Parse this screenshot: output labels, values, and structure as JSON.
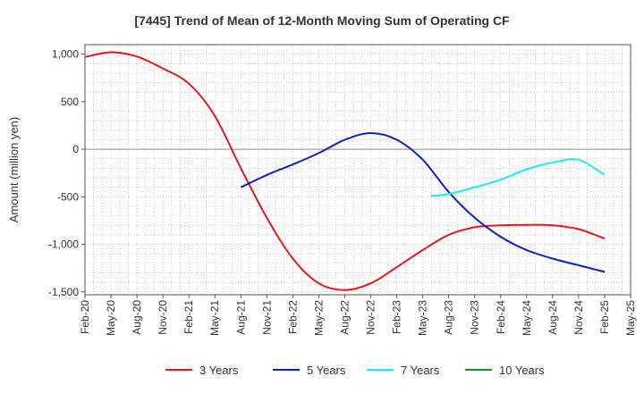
{
  "chart_data": {
    "type": "line",
    "title": "[7445]  Trend of Mean of 12-Month Moving Sum of Operating CF",
    "xlabel": "",
    "ylabel": "Amount (million yen)",
    "x_ticks": [
      "Feb-20",
      "May-20",
      "Aug-20",
      "Nov-20",
      "Feb-21",
      "May-21",
      "Aug-21",
      "Nov-21",
      "Feb-22",
      "May-22",
      "Aug-22",
      "Nov-22",
      "Feb-23",
      "May-23",
      "Aug-23",
      "Nov-23",
      "Feb-24",
      "May-24",
      "Aug-24",
      "Nov-24",
      "Feb-25",
      "May-25"
    ],
    "y_ticks": [
      1000,
      500,
      0,
      -500,
      -1000,
      -1500
    ],
    "y_tick_labels": [
      "1,000",
      "500",
      "0",
      "-500",
      "-1,000",
      "-1,500"
    ],
    "ylim": [
      -1530,
      1100
    ],
    "grid": true,
    "legend_position": "bottom",
    "series": [
      {
        "name": "3 Years",
        "color": "#e31a1c",
        "points": [
          [
            "Feb-20",
            970
          ],
          [
            "May-20",
            1020
          ],
          [
            "Aug-20",
            975
          ],
          [
            "Nov-20",
            850
          ],
          [
            "Feb-21",
            690
          ],
          [
            "May-21",
            350
          ],
          [
            "Aug-21",
            -200
          ],
          [
            "Nov-21",
            -720
          ],
          [
            "Feb-22",
            -1150
          ],
          [
            "May-22",
            -1410
          ],
          [
            "Aug-22",
            -1480
          ],
          [
            "Nov-22",
            -1410
          ],
          [
            "Feb-23",
            -1240
          ],
          [
            "May-23",
            -1060
          ],
          [
            "Aug-23",
            -900
          ],
          [
            "Nov-23",
            -820
          ],
          [
            "Feb-24",
            -800
          ],
          [
            "May-24",
            -795
          ],
          [
            "Aug-24",
            -800
          ],
          [
            "Nov-24",
            -840
          ],
          [
            "Feb-25",
            -940
          ]
        ]
      },
      {
        "name": "5 Years",
        "color": "#0a22c8",
        "points": [
          [
            "Aug-21",
            -400
          ],
          [
            "Nov-21",
            -270
          ],
          [
            "Feb-22",
            -160
          ],
          [
            "May-22",
            -40
          ],
          [
            "Aug-22",
            100
          ],
          [
            "Nov-22",
            170
          ],
          [
            "Feb-23",
            100
          ],
          [
            "May-23",
            -110
          ],
          [
            "Aug-23",
            -450
          ],
          [
            "Nov-23",
            -720
          ],
          [
            "Feb-24",
            -920
          ],
          [
            "May-24",
            -1060
          ],
          [
            "Aug-24",
            -1150
          ],
          [
            "Nov-24",
            -1220
          ],
          [
            "Feb-25",
            -1290
          ]
        ]
      },
      {
        "name": "7 Years",
        "color": "#22e6f0",
        "points": [
          [
            "Jun-23",
            -490
          ],
          [
            "Aug-23",
            -470
          ],
          [
            "Nov-23",
            -400
          ],
          [
            "Feb-24",
            -320
          ],
          [
            "May-24",
            -210
          ],
          [
            "Aug-24",
            -140
          ],
          [
            "Nov-24",
            -110
          ],
          [
            "Feb-25",
            -270
          ]
        ]
      },
      {
        "name": "10 Years",
        "color": "#228b22",
        "points": []
      }
    ]
  }
}
